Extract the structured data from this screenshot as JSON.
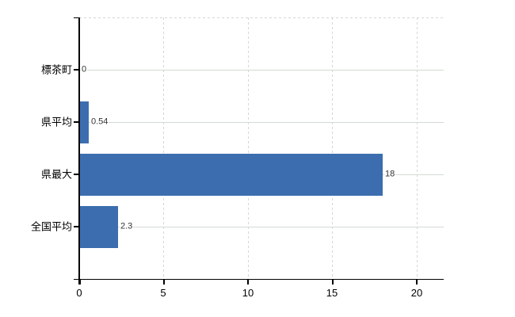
{
  "chart_data": {
    "type": "bar",
    "orientation": "horizontal",
    "title": "",
    "xlabel": "",
    "ylabel": "",
    "categories": [
      "標茶町",
      "県平均",
      "県最大",
      "全国平均"
    ],
    "values": [
      0,
      0.54,
      18,
      2.3
    ],
    "value_labels": [
      "0",
      "0.54",
      "18",
      "2.3"
    ],
    "x_ticks": [
      0,
      5,
      10,
      15,
      20
    ],
    "x_tick_labels": [
      "0",
      "5",
      "10",
      "15",
      "20"
    ],
    "xlim": [
      0,
      21.6
    ],
    "legend": "none",
    "grid": {
      "vertical": "dashed",
      "horizontal": "solid",
      "top_border": "dashed"
    },
    "colors": {
      "bar": "#3c6eaf",
      "axis": "#000000",
      "gridline_horizontal": "#d2dad2",
      "gridline_vertical": "#d6d6d6",
      "category_text": "#000000",
      "tick_text": "#000000",
      "value_text": "#333333",
      "background": "#ffffff"
    }
  }
}
